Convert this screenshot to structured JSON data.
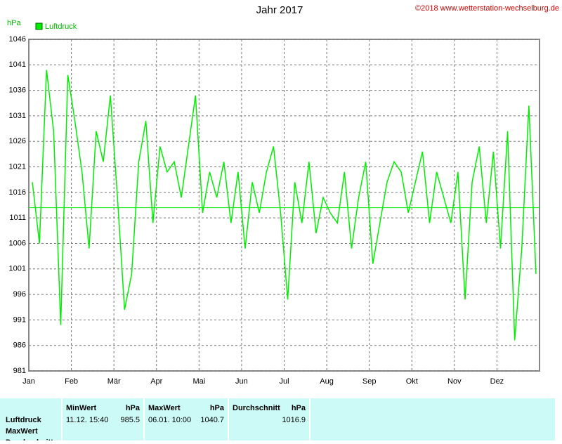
{
  "chart_data": {
    "type": "line",
    "title": "Jahr 2017",
    "source": "©2018 www.wetterstation-wechselburg.de",
    "y_label": "hPa",
    "categories": [
      "Jan",
      null,
      null,
      null,
      null,
      null,
      "Feb",
      null,
      null,
      null,
      null,
      null,
      "Mär",
      null,
      null,
      null,
      null,
      null,
      "Apr",
      null,
      null,
      null,
      null,
      null,
      "Mai",
      null,
      null,
      null,
      null,
      null,
      "Jun",
      null,
      null,
      null,
      null,
      null,
      "Jul",
      null,
      null,
      null,
      null,
      null,
      "Aug",
      null,
      null,
      null,
      null,
      null,
      "Sep",
      null,
      null,
      null,
      null,
      null,
      "Okt",
      null,
      null,
      null,
      null,
      null,
      "Nov",
      null,
      null,
      null,
      null,
      null,
      "Dez",
      null,
      null,
      null,
      null,
      null
    ],
    "series": [
      {
        "name": "Luftdruck",
        "color": "#00ee00",
        "values": [
          1018,
          1006,
          1040,
          1028,
          990,
          1039,
          1030,
          1020,
          1005,
          1028,
          1022,
          1035,
          1015,
          993,
          1000,
          1022,
          1030,
          1010,
          1025,
          1020,
          1022,
          1015,
          1025,
          1035,
          1012,
          1020,
          1015,
          1022,
          1010,
          1020,
          1005,
          1018,
          1012,
          1020,
          1025,
          1012,
          995,
          1018,
          1010,
          1022,
          1008,
          1015,
          1012,
          1010,
          1020,
          1005,
          1015,
          1022,
          1002,
          1010,
          1018,
          1022,
          1020,
          1012,
          1018,
          1024,
          1010,
          1020,
          1015,
          1010,
          1020,
          995,
          1018,
          1025,
          1010,
          1024,
          1005,
          1028,
          987,
          1005,
          1033,
          1000
        ]
      }
    ],
    "reference_line": 1013,
    "ylim": [
      981,
      1046
    ],
    "yticks": [
      981,
      986,
      991,
      996,
      1001,
      1006,
      1011,
      1016,
      1021,
      1026,
      1031,
      1036,
      1041,
      1046
    ],
    "grid": true
  },
  "table": {
    "row_labels": [
      "Luftdruck",
      "MaxWert",
      "Durchschnitt"
    ],
    "columns": [
      {
        "header": "MinWert",
        "unit": "hPa",
        "time": "11.12.  15:40",
        "value": 985.5
      },
      {
        "header": "MaxWert",
        "unit": "hPa",
        "time": "06.01.  10:00",
        "value": 1040.7
      },
      {
        "header": "Durchschnitt",
        "unit": "hPa",
        "value": 1016.9
      }
    ]
  }
}
